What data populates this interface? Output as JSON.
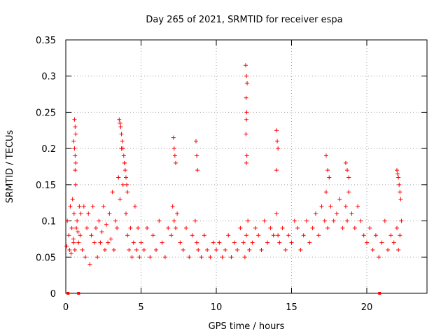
{
  "chart_data": {
    "type": "scatter",
    "title": "Day 265 of 2021, SRMTID for receiver espa",
    "xlabel": "GPS time / hours",
    "ylabel": "SRMTID / TECUs",
    "xlim": [
      0,
      24
    ],
    "ylim": [
      0,
      0.35
    ],
    "xticks": [
      0,
      5,
      10,
      15,
      20
    ],
    "yticks": [
      0,
      0.05,
      0.1,
      0.15,
      0.2,
      0.25,
      0.3,
      0.35
    ],
    "grid": true,
    "marker": "+",
    "color": "#ff0000",
    "series": [
      {
        "name": "SRMTID",
        "x": [
          0.05,
          0.1,
          0.2,
          0.25,
          0.3,
          0.35,
          0.4,
          0.45,
          0.5,
          0.55,
          0.6,
          0.65,
          0.7,
          0.75,
          0.8,
          0.85,
          0.9,
          0.95,
          1.0,
          1.1,
          1.2,
          1.3,
          1.4,
          1.5,
          1.6,
          1.7,
          1.8,
          1.9,
          2.0,
          2.1,
          2.2,
          2.3,
          2.4,
          2.5,
          2.6,
          2.7,
          2.8,
          2.9,
          3.0,
          3.1,
          3.2,
          3.3,
          3.4,
          3.5,
          3.6,
          3.7,
          3.8,
          3.9,
          4.0,
          4.1,
          4.2,
          4.3,
          4.4,
          4.5,
          4.6,
          4.7,
          4.8,
          4.9,
          5.0,
          5.2,
          5.4,
          5.6,
          5.8,
          6.0,
          6.2,
          6.4,
          6.6,
          6.8,
          7.0,
          7.1,
          7.2,
          7.3,
          7.4,
          7.6,
          7.8,
          8.0,
          8.2,
          8.4,
          8.6,
          8.7,
          8.8,
          9.0,
          9.2,
          9.4,
          9.6,
          9.8,
          10.0,
          10.2,
          10.4,
          10.6,
          10.8,
          11.0,
          11.2,
          11.4,
          11.6,
          11.8,
          11.9,
          12.0,
          12.1,
          12.2,
          12.4,
          12.6,
          12.8,
          13.0,
          13.2,
          13.4,
          13.6,
          13.8,
          14.0,
          14.1,
          14.2,
          14.4,
          14.6,
          14.8,
          15.0,
          15.2,
          15.4,
          15.6,
          15.8,
          16.0,
          16.2,
          16.4,
          16.6,
          16.8,
          17.0,
          17.2,
          17.3,
          17.4,
          17.6,
          17.8,
          18.0,
          18.2,
          18.4,
          18.6,
          18.7,
          18.8,
          19.0,
          19.2,
          19.4,
          19.6,
          19.8,
          20.0,
          20.2,
          20.4,
          20.6,
          20.8,
          21.0,
          21.2,
          21.4,
          21.6,
          21.8,
          22.0,
          22.1,
          22.2,
          22.3,
          0.52,
          0.58,
          0.62,
          0.66,
          0.52,
          0.58,
          0.62,
          0.66,
          0.62,
          3.5,
          3.55,
          3.6,
          3.65,
          3.7,
          3.75,
          3.8,
          3.85,
          3.9,
          3.95,
          4.0,
          4.05,
          4.1,
          7.15,
          7.2,
          7.25,
          7.3,
          8.65,
          8.7,
          8.75,
          11.95,
          12.0,
          12.05,
          11.98,
          12.02,
          12.0,
          11.97,
          12.03,
          12.0,
          14.0,
          14.05,
          14.1,
          14.0,
          17.3,
          17.4,
          17.5,
          18.6,
          18.7,
          18.8,
          22.0,
          22.05,
          22.1,
          22.15,
          22.2,
          22.25
        ],
        "y": [
          0.065,
          0.1,
          0.08,
          0.06,
          0.12,
          0.055,
          0.09,
          0.13,
          0.075,
          0.11,
          0.06,
          0.15,
          0.09,
          0.1,
          0.085,
          0.07,
          0.12,
          0.08,
          0.11,
          0.06,
          0.12,
          0.05,
          0.09,
          0.11,
          0.04,
          0.08,
          0.12,
          0.07,
          0.09,
          0.05,
          0.1,
          0.07,
          0.085,
          0.12,
          0.06,
          0.095,
          0.07,
          0.11,
          0.075,
          0.14,
          0.06,
          0.1,
          0.09,
          0.16,
          0.13,
          0.2,
          0.15,
          0.18,
          0.11,
          0.08,
          0.06,
          0.09,
          0.05,
          0.07,
          0.12,
          0.06,
          0.09,
          0.05,
          0.07,
          0.06,
          0.09,
          0.05,
          0.08,
          0.06,
          0.1,
          0.07,
          0.05,
          0.09,
          0.08,
          0.12,
          0.1,
          0.09,
          0.11,
          0.07,
          0.06,
          0.09,
          0.05,
          0.08,
          0.1,
          0.07,
          0.06,
          0.05,
          0.08,
          0.06,
          0.05,
          0.07,
          0.06,
          0.07,
          0.05,
          0.06,
          0.08,
          0.05,
          0.07,
          0.06,
          0.09,
          0.07,
          0.05,
          0.08,
          0.1,
          0.06,
          0.07,
          0.09,
          0.08,
          0.06,
          0.1,
          0.07,
          0.09,
          0.08,
          0.11,
          0.08,
          0.07,
          0.09,
          0.06,
          0.08,
          0.07,
          0.1,
          0.09,
          0.06,
          0.08,
          0.1,
          0.07,
          0.09,
          0.11,
          0.08,
          0.12,
          0.1,
          0.14,
          0.09,
          0.12,
          0.1,
          0.11,
          0.13,
          0.09,
          0.12,
          0.1,
          0.14,
          0.11,
          0.09,
          0.12,
          0.1,
          0.08,
          0.07,
          0.09,
          0.06,
          0.08,
          0.05,
          0.07,
          0.1,
          0.06,
          0.08,
          0.07,
          0.09,
          0.06,
          0.08,
          0.1,
          0.07,
          0.24,
          0.23,
          0.22,
          0.21,
          0.2,
          0.19,
          0.18,
          0.17,
          0.16,
          0.24,
          0.235,
          0.23,
          0.22,
          0.21,
          0.2,
          0.19,
          0.18,
          0.17,
          0.16,
          0.15,
          0.14,
          0.215,
          0.2,
          0.19,
          0.18,
          0.21,
          0.19,
          0.17,
          0.315,
          0.3,
          0.29,
          0.27,
          0.25,
          0.24,
          0.22,
          0.19,
          0.18,
          0.225,
          0.21,
          0.2,
          0.17,
          0.19,
          0.17,
          0.16,
          0.18,
          0.17,
          0.16,
          0.17,
          0.165,
          0.16,
          0.15,
          0.14,
          0.13
        ]
      }
    ],
    "axis_markers_x": [
      0.15,
      0.85,
      20.85
    ]
  }
}
